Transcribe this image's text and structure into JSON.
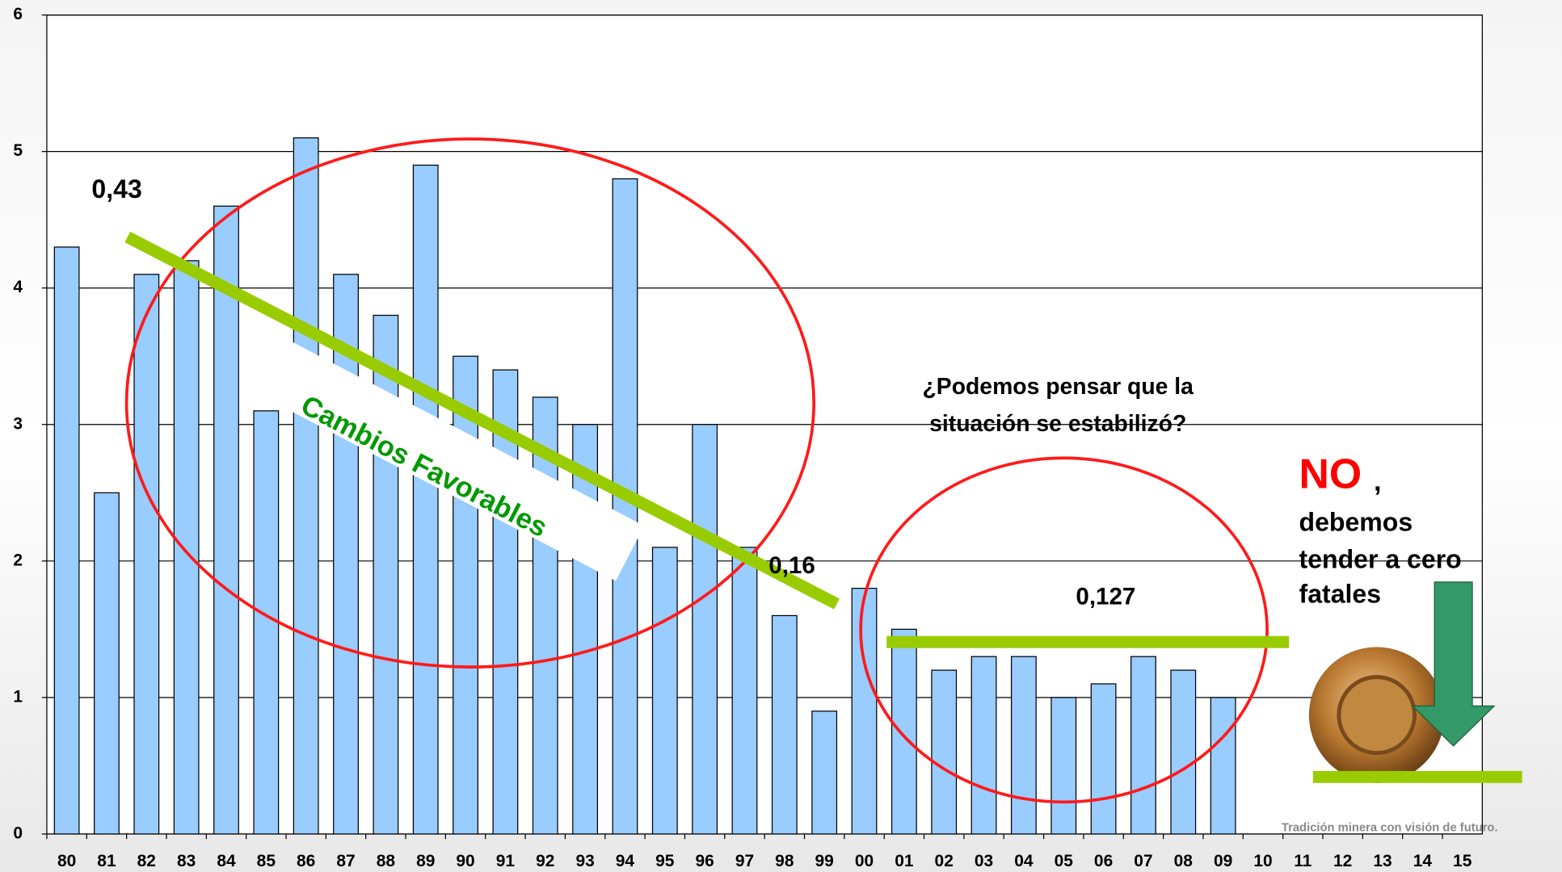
{
  "chart_data": {
    "type": "bar",
    "categories": [
      "80",
      "81",
      "82",
      "83",
      "84",
      "85",
      "86",
      "87",
      "88",
      "89",
      "90",
      "91",
      "92",
      "93",
      "94",
      "95",
      "96",
      "97",
      "98",
      "99",
      "00",
      "01",
      "02",
      "03",
      "04",
      "05",
      "06",
      "07",
      "08",
      "09",
      "10",
      "11",
      "12",
      "13",
      "14",
      "15"
    ],
    "values": [
      4.3,
      2.5,
      4.1,
      4.2,
      4.6,
      3.1,
      5.1,
      4.1,
      3.8,
      4.9,
      3.5,
      3.4,
      3.2,
      3.0,
      4.8,
      2.1,
      3.0,
      2.1,
      1.6,
      0.9,
      1.8,
      1.5,
      1.2,
      1.3,
      1.3,
      1.0,
      1.1,
      1.3,
      1.2,
      1.0,
      null,
      null,
      null,
      null,
      null,
      null
    ],
    "color": "#99ccff",
    "ylim": [
      0,
      6
    ],
    "yticks": [
      0,
      1,
      2,
      3,
      4,
      5,
      6
    ],
    "grid": true,
    "annotations": [
      "0,43",
      "0,16",
      "0,127",
      "¿Podemos pensar que la",
      "situación se estabilizó?",
      "NO",
      ",",
      "debemos",
      "tender  a  cero",
      "fatales",
      "Cambios Favorables",
      "Tradición minera con visión de futuro."
    ]
  }
}
